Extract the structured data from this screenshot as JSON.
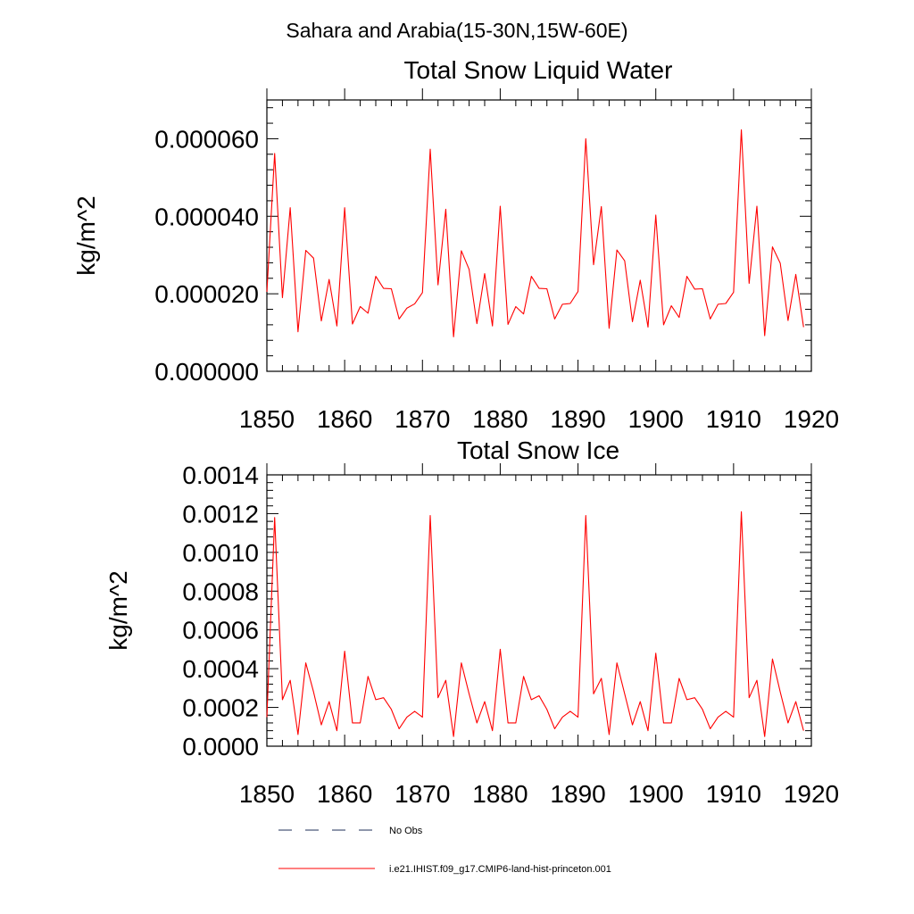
{
  "figure": {
    "supertitle": "Sahara and Arabia(15-30N,15W-60E)",
    "legend": [
      {
        "label": "No Obs",
        "style": "dashed",
        "color": "#1f2f5a"
      },
      {
        "label": "i.e21.IHIST.f09_g17.CMIP6-land-hist-princeton.001",
        "style": "solid",
        "color": "#ff0000"
      }
    ]
  },
  "chart_data": [
    {
      "type": "line",
      "title": "Total Snow Liquid Water",
      "xlabel": "",
      "ylabel": "kg/m^2",
      "xlim": [
        1850,
        1920
      ],
      "ylim": [
        0,
        7e-05
      ],
      "xticks": [
        1850,
        1860,
        1870,
        1880,
        1890,
        1900,
        1910,
        1920
      ],
      "xtick_labels": [
        "1850",
        "1860",
        "1870",
        "1880",
        "1890",
        "1900",
        "1910",
        "1920"
      ],
      "yticks": [
        0,
        2e-05,
        4e-05,
        6e-05
      ],
      "ytick_labels": [
        "0.000000",
        "0.000020",
        "0.000040",
        "0.000060"
      ],
      "grid": false,
      "series": [
        {
          "color": "#ff0000",
          "x": [
            1850,
            1851,
            1852,
            1853,
            1854,
            1855,
            1856,
            1857,
            1858,
            1859,
            1860,
            1861,
            1862,
            1863,
            1864,
            1865,
            1866,
            1867,
            1868,
            1869,
            1870,
            1871,
            1872,
            1873,
            1874,
            1875,
            1876,
            1877,
            1878,
            1879,
            1880,
            1881,
            1882,
            1883,
            1884,
            1885,
            1886,
            1887,
            1888,
            1889,
            1890,
            1891,
            1892,
            1893,
            1894,
            1895,
            1896,
            1897,
            1898,
            1899,
            1900,
            1901,
            1902,
            1903,
            1904,
            1905,
            1906,
            1907,
            1908,
            1909,
            1910,
            1911,
            1912,
            1913,
            1914,
            1915,
            1916,
            1917,
            1918,
            1919
          ],
          "y": [
            2.05e-05,
            5.62e-05,
            1.9e-05,
            4.22e-05,
            1.02e-05,
            3.12e-05,
            2.92e-05,
            1.3e-05,
            2.37e-05,
            1.17e-05,
            4.22e-05,
            1.22e-05,
            1.67e-05,
            1.5e-05,
            2.45e-05,
            2.14e-05,
            2.13e-05,
            1.35e-05,
            1.63e-05,
            1.74e-05,
            2.03e-05,
            5.73e-05,
            2.23e-05,
            4.18e-05,
            8.9e-06,
            3.11e-05,
            2.63e-05,
            1.23e-05,
            2.52e-05,
            1.17e-05,
            4.26e-05,
            1.21e-05,
            1.67e-05,
            1.48e-05,
            2.45e-05,
            2.14e-05,
            2.13e-05,
            1.35e-05,
            1.73e-05,
            1.75e-05,
            2.06e-05,
            6e-05,
            2.75e-05,
            4.25e-05,
            1.11e-05,
            3.13e-05,
            2.85e-05,
            1.28e-05,
            2.35e-05,
            1.14e-05,
            4.03e-05,
            1.2e-05,
            1.69e-05,
            1.39e-05,
            2.45e-05,
            2.12e-05,
            2.13e-05,
            1.35e-05,
            1.73e-05,
            1.75e-05,
            2.04e-05,
            6.23e-05,
            2.27e-05,
            4.26e-05,
            9.2e-06,
            3.21e-05,
            2.79e-05,
            1.31e-05,
            2.5e-05,
            1.14e-05
          ]
        }
      ]
    },
    {
      "type": "line",
      "title": "Total Snow Ice",
      "xlabel": "",
      "ylabel": "kg/m^2",
      "xlim": [
        1850,
        1920
      ],
      "ylim": [
        0,
        0.0014
      ],
      "xticks": [
        1850,
        1860,
        1870,
        1880,
        1890,
        1900,
        1910,
        1920
      ],
      "xtick_labels": [
        "1850",
        "1860",
        "1870",
        "1880",
        "1890",
        "1900",
        "1910",
        "1920"
      ],
      "yticks": [
        0,
        0.0002,
        0.0004,
        0.0006,
        0.0008,
        0.001,
        0.0012,
        0.0014
      ],
      "ytick_labels": [
        "0.0000",
        "0.0002",
        "0.0004",
        "0.0006",
        "0.0008",
        "0.0010",
        "0.0012",
        "0.0014"
      ],
      "grid": false,
      "series": [
        {
          "color": "#ff0000",
          "x": [
            1850,
            1851,
            1852,
            1853,
            1854,
            1855,
            1856,
            1857,
            1858,
            1859,
            1860,
            1861,
            1862,
            1863,
            1864,
            1865,
            1866,
            1867,
            1868,
            1869,
            1870,
            1871,
            1872,
            1873,
            1874,
            1875,
            1876,
            1877,
            1878,
            1879,
            1880,
            1881,
            1882,
            1883,
            1884,
            1885,
            1886,
            1887,
            1888,
            1889,
            1890,
            1891,
            1892,
            1893,
            1894,
            1895,
            1896,
            1897,
            1898,
            1899,
            1900,
            1901,
            1902,
            1903,
            1904,
            1905,
            1906,
            1907,
            1908,
            1909,
            1910,
            1911,
            1912,
            1913,
            1914,
            1915,
            1916,
            1917,
            1918,
            1919
          ],
          "y": [
            0.00015,
            0.00118,
            0.00024,
            0.00034,
            6e-05,
            0.00043,
            0.00028,
            0.00011,
            0.00023,
            8e-05,
            0.00049,
            0.00012,
            0.00012,
            0.00036,
            0.00024,
            0.00025,
            0.00019,
            9e-05,
            0.00015,
            0.00018,
            0.00015,
            0.00119,
            0.00025,
            0.00034,
            5e-05,
            0.00043,
            0.00027,
            0.00012,
            0.00023,
            8e-05,
            0.0005,
            0.00012,
            0.00012,
            0.00036,
            0.00024,
            0.00026,
            0.00019,
            9e-05,
            0.00015,
            0.00018,
            0.00015,
            0.00119,
            0.00027,
            0.00035,
            6e-05,
            0.00043,
            0.00027,
            0.00011,
            0.00023,
            8e-05,
            0.00048,
            0.00012,
            0.00012,
            0.00035,
            0.00024,
            0.00025,
            0.00019,
            9e-05,
            0.00015,
            0.00018,
            0.00015,
            0.00121,
            0.00025,
            0.00034,
            5e-05,
            0.00045,
            0.00028,
            0.00012,
            0.00023,
            8e-05
          ]
        }
      ]
    }
  ]
}
